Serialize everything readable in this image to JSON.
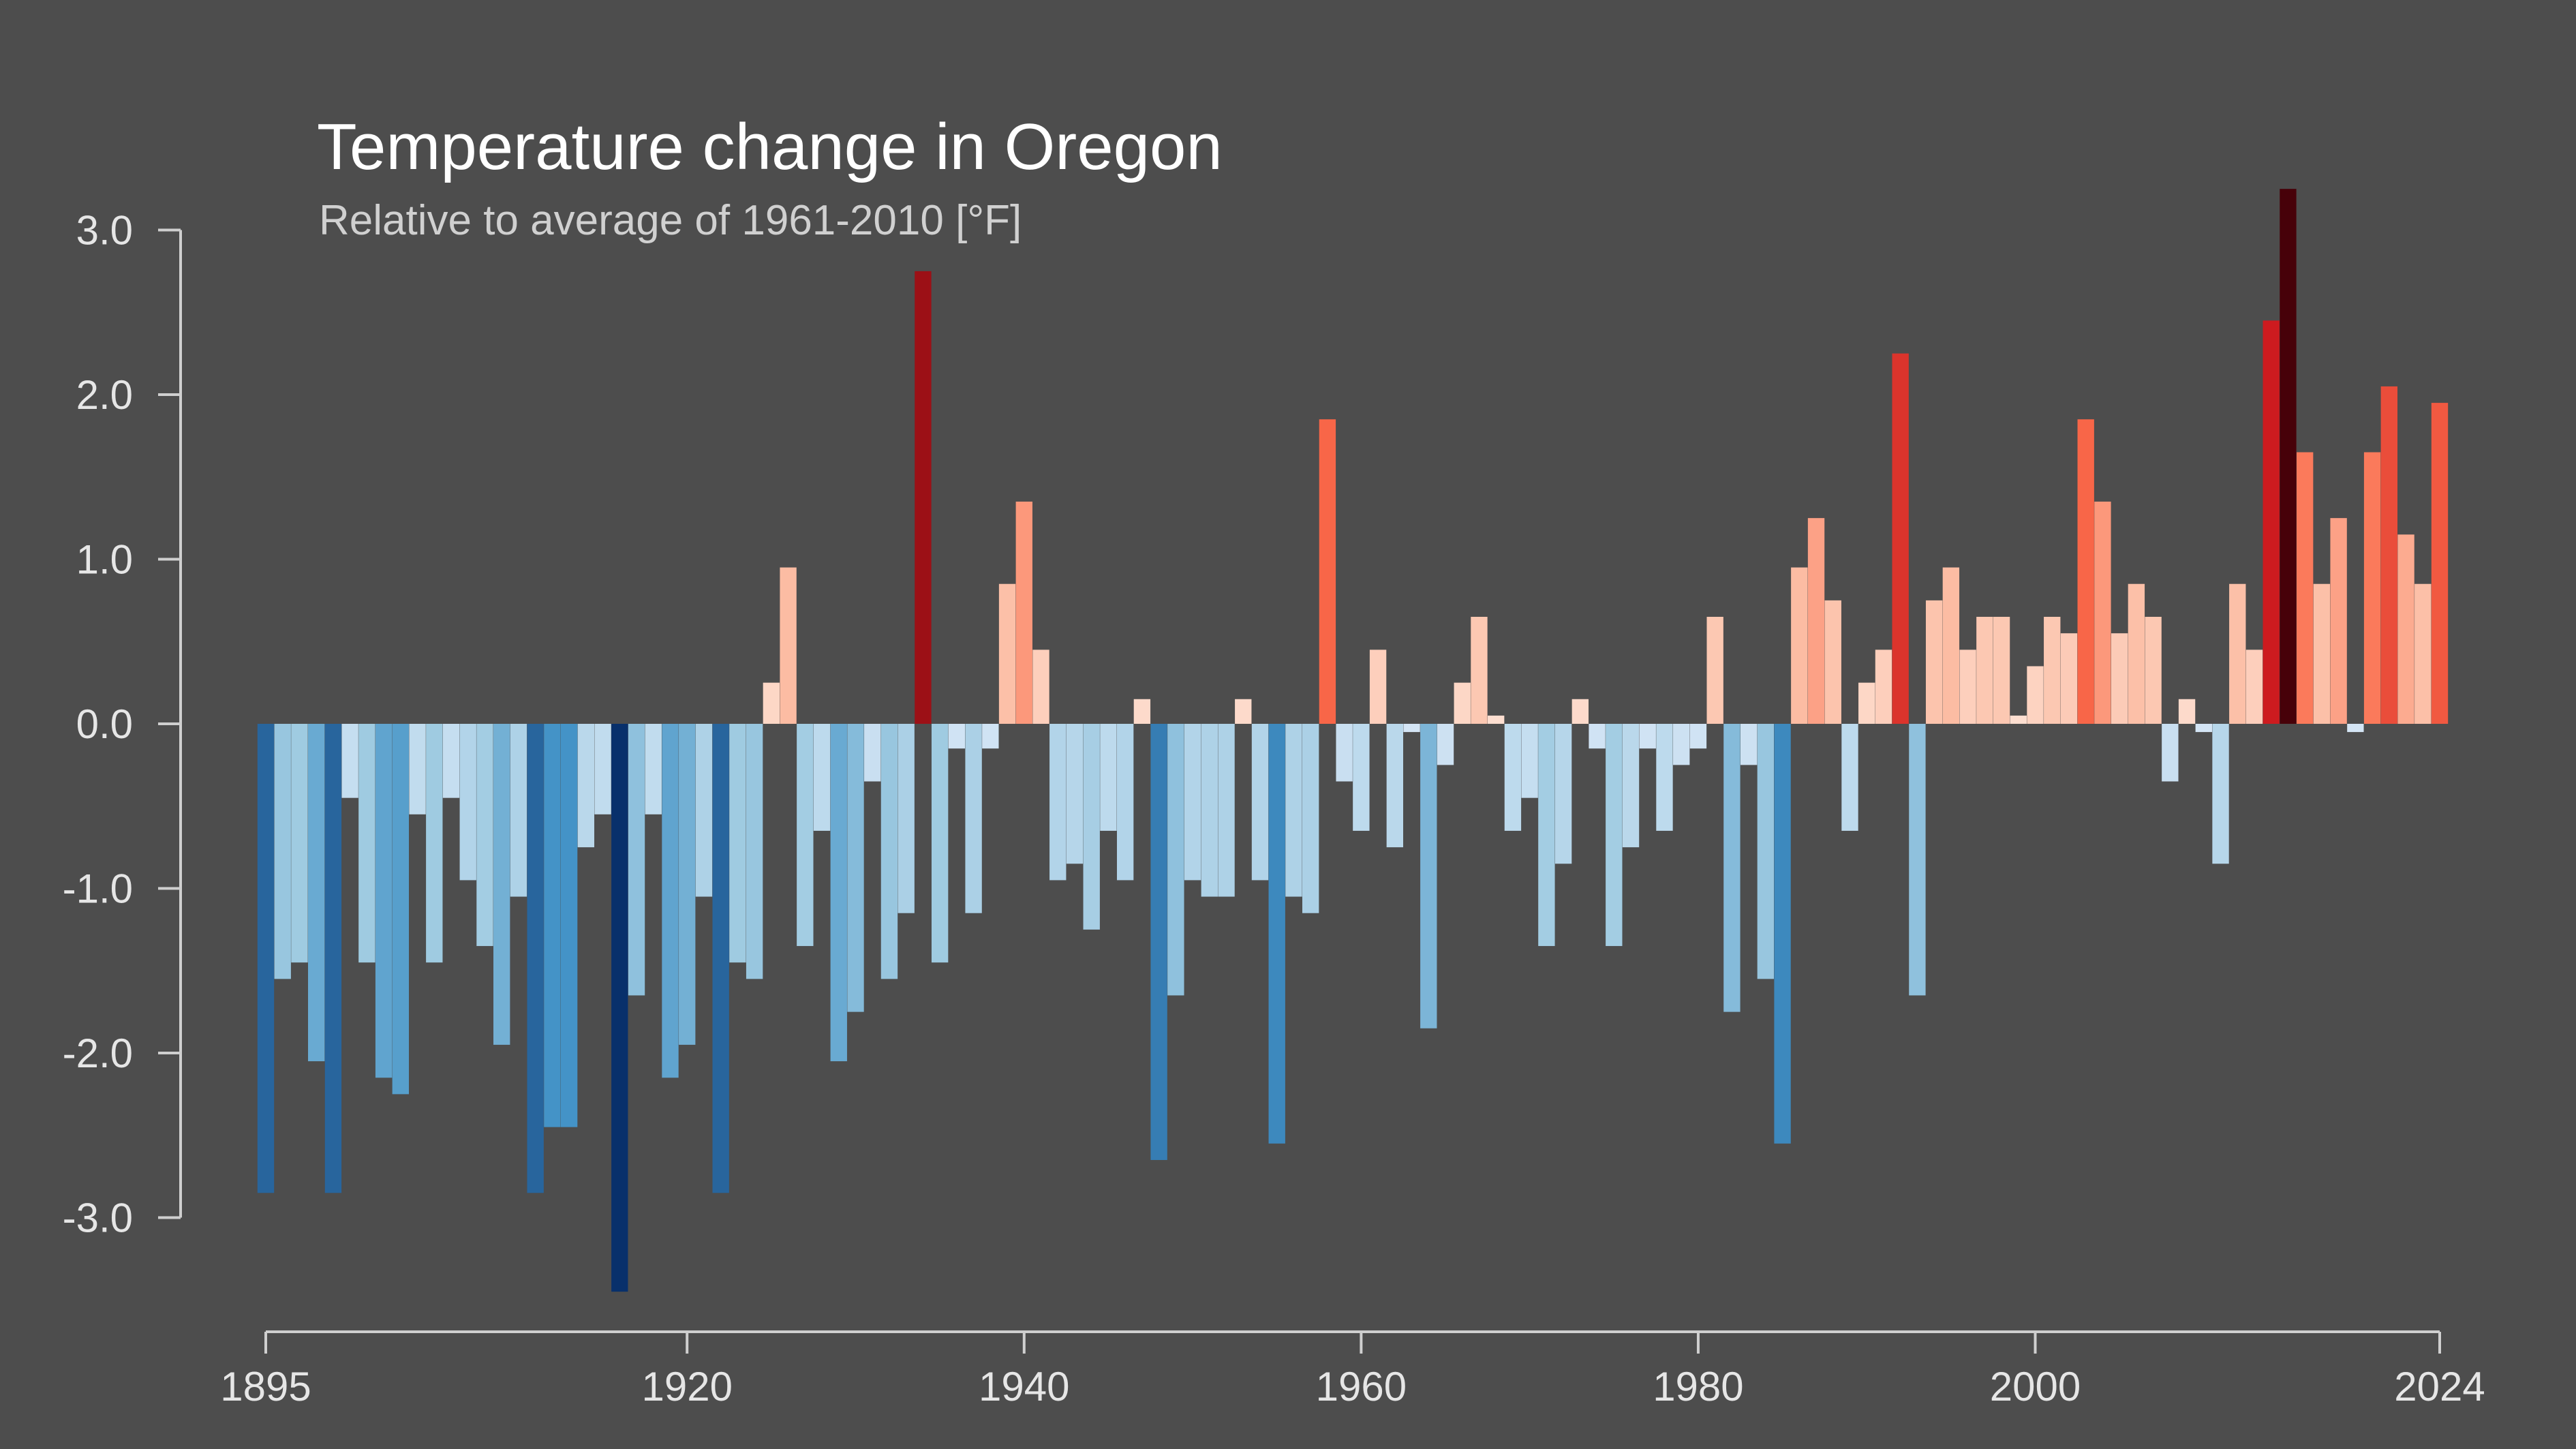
{
  "chart_data": {
    "type": "bar",
    "title": "Temperature change in Oregon",
    "subtitle": "Relative to average of 1961-2010  [°F]",
    "xlabel": "",
    "ylabel": "",
    "ylim": [
      -3.6,
      3.3
    ],
    "xlim": [
      1895,
      2024
    ],
    "x_ticks": [
      "1895",
      "1920",
      "1940",
      "1960",
      "1980",
      "2000",
      "2024"
    ],
    "y_ticks": [
      "3.0",
      "2.0",
      "1.0",
      "0.0",
      "-1.0",
      "-2.0",
      "-3.0"
    ],
    "grid": false,
    "legend": "none",
    "color_scale": {
      "cold": "#08306b",
      "cool": "#4292c6",
      "neutral": "#f7f7f7",
      "warm": "#fb6a4a",
      "hot": "#67000d"
    },
    "categories": [
      1895,
      1896,
      1897,
      1898,
      1899,
      1900,
      1901,
      1902,
      1903,
      1904,
      1905,
      1906,
      1907,
      1908,
      1909,
      1910,
      1911,
      1912,
      1913,
      1914,
      1915,
      1916,
      1917,
      1918,
      1919,
      1920,
      1921,
      1922,
      1923,
      1924,
      1925,
      1926,
      1927,
      1928,
      1929,
      1930,
      1931,
      1932,
      1933,
      1934,
      1935,
      1936,
      1937,
      1938,
      1939,
      1940,
      1941,
      1942,
      1943,
      1944,
      1945,
      1946,
      1947,
      1948,
      1949,
      1950,
      1951,
      1952,
      1953,
      1954,
      1955,
      1956,
      1957,
      1958,
      1959,
      1960,
      1961,
      1962,
      1963,
      1964,
      1965,
      1966,
      1967,
      1968,
      1969,
      1970,
      1971,
      1972,
      1973,
      1974,
      1975,
      1976,
      1977,
      1978,
      1979,
      1980,
      1981,
      1982,
      1983,
      1984,
      1985,
      1986,
      1987,
      1988,
      1989,
      1990,
      1991,
      1992,
      1993,
      1994,
      1995,
      1996,
      1997,
      1998,
      1999,
      2000,
      2001,
      2002,
      2003,
      2004,
      2005,
      2006,
      2007,
      2008,
      2009,
      2010,
      2011,
      2012,
      2013,
      2014,
      2015,
      2016,
      2017,
      2018,
      2019,
      2020,
      2021,
      2022,
      2023,
      2024
    ],
    "values": [
      -2.85,
      -1.55,
      -1.45,
      -2.05,
      -2.85,
      -0.45,
      -1.45,
      -2.15,
      -2.25,
      -0.55,
      -1.45,
      -0.45,
      -0.95,
      -1.35,
      -1.95,
      -1.05,
      -2.85,
      -2.45,
      -2.45,
      -0.75,
      -0.55,
      -3.45,
      -1.65,
      -0.55,
      -2.15,
      -1.95,
      -1.05,
      -2.85,
      -1.45,
      -1.55,
      0.25,
      0.95,
      -1.35,
      -0.65,
      -2.05,
      -1.75,
      -0.35,
      -1.55,
      -1.15,
      2.75,
      -1.45,
      -0.15,
      -1.15,
      -0.15,
      0.85,
      1.35,
      0.45,
      -0.95,
      -0.85,
      -1.25,
      -0.65,
      -0.95,
      0.15,
      -2.65,
      -1.65,
      -0.95,
      -1.05,
      -1.05,
      0.15,
      -0.95,
      -2.55,
      -1.05,
      -1.15,
      1.85,
      -0.35,
      -0.65,
      0.45,
      -0.75,
      -0.05,
      -1.85,
      -0.25,
      0.25,
      0.65,
      0.05,
      -0.65,
      -0.45,
      -1.35,
      -0.85,
      0.15,
      -0.15,
      -1.35,
      -0.75,
      -0.15,
      -0.65,
      -0.25,
      -0.15,
      0.65,
      -1.75,
      -0.25,
      -1.55,
      -2.55,
      0.95,
      1.25,
      0.75,
      -0.65,
      0.25,
      0.45,
      2.25,
      -1.65,
      0.75,
      0.95,
      0.45,
      0.65,
      0.65,
      0.05,
      0.35,
      0.65,
      0.55,
      1.85,
      1.35,
      0.55,
      0.85,
      0.65,
      -0.35,
      0.15,
      -0.05,
      -0.85,
      0.85,
      0.45,
      2.45,
      3.25,
      1.65,
      0.85,
      1.25,
      -0.05,
      1.65,
      2.05,
      1.15,
      0.85,
      1.95
    ]
  }
}
